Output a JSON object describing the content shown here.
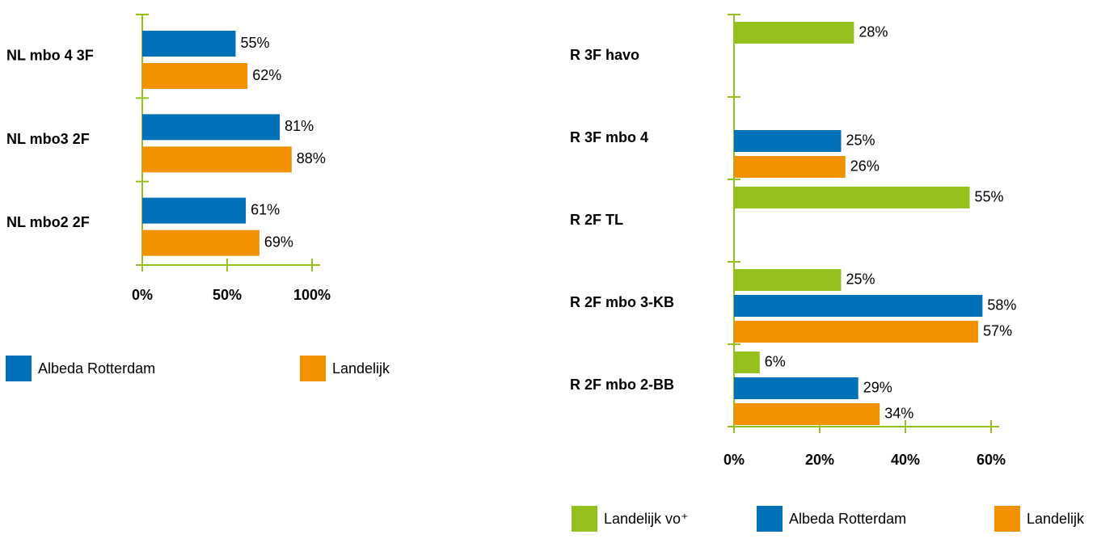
{
  "chart_data": [
    {
      "type": "bar",
      "categories": [
        "NL mbo 4 3F",
        "NL mbo3 2F",
        "NL mbo2 2F"
      ],
      "series": [
        {
          "name": "Albeda Rotterdam",
          "color": "#0070b8",
          "values": [
            55,
            81,
            61
          ],
          "value_labels": [
            "55%",
            "81%",
            "61%"
          ]
        },
        {
          "name": "Landelijk",
          "color": "#f39200",
          "values": [
            62,
            88,
            69
          ],
          "value_labels": [
            "62%",
            "88%",
            "69%"
          ]
        }
      ],
      "xlim": [
        0,
        100
      ],
      "xticks": [
        {
          "value": 0,
          "label": "0%"
        },
        {
          "value": 50,
          "label": "50%"
        },
        {
          "value": 100,
          "label": "100%"
        }
      ],
      "axis_color": "#95c11f"
    },
    {
      "type": "bar",
      "categories": [
        "R 3F havo",
        "R 3F mbo 4",
        "R 2F TL",
        "R 2F mbo 3-KB",
        "R 2F mbo 2-BB"
      ],
      "series": [
        {
          "name": "Landelijk vo⁺",
          "color": "#95c11f",
          "values": [
            28,
            null,
            55,
            25,
            6
          ],
          "value_labels": [
            "28%",
            null,
            "55%",
            "25%",
            "6%"
          ]
        },
        {
          "name": "Albeda Rotterdam",
          "color": "#0070b8",
          "values": [
            null,
            25,
            null,
            58,
            29
          ],
          "value_labels": [
            null,
            "25%",
            null,
            "58%",
            "29%"
          ]
        },
        {
          "name": "Landelijk",
          "color": "#f39200",
          "values": [
            null,
            26,
            null,
            57,
            34
          ],
          "value_labels": [
            null,
            "26%",
            null,
            "57%",
            "34%"
          ]
        }
      ],
      "xlim": [
        0,
        60
      ],
      "xticks": [
        {
          "value": 0,
          "label": "0%"
        },
        {
          "value": 20,
          "label": "20%"
        },
        {
          "value": 40,
          "label": "40%"
        },
        {
          "value": 60,
          "label": "60%"
        }
      ],
      "axis_color": "#95c11f"
    }
  ]
}
